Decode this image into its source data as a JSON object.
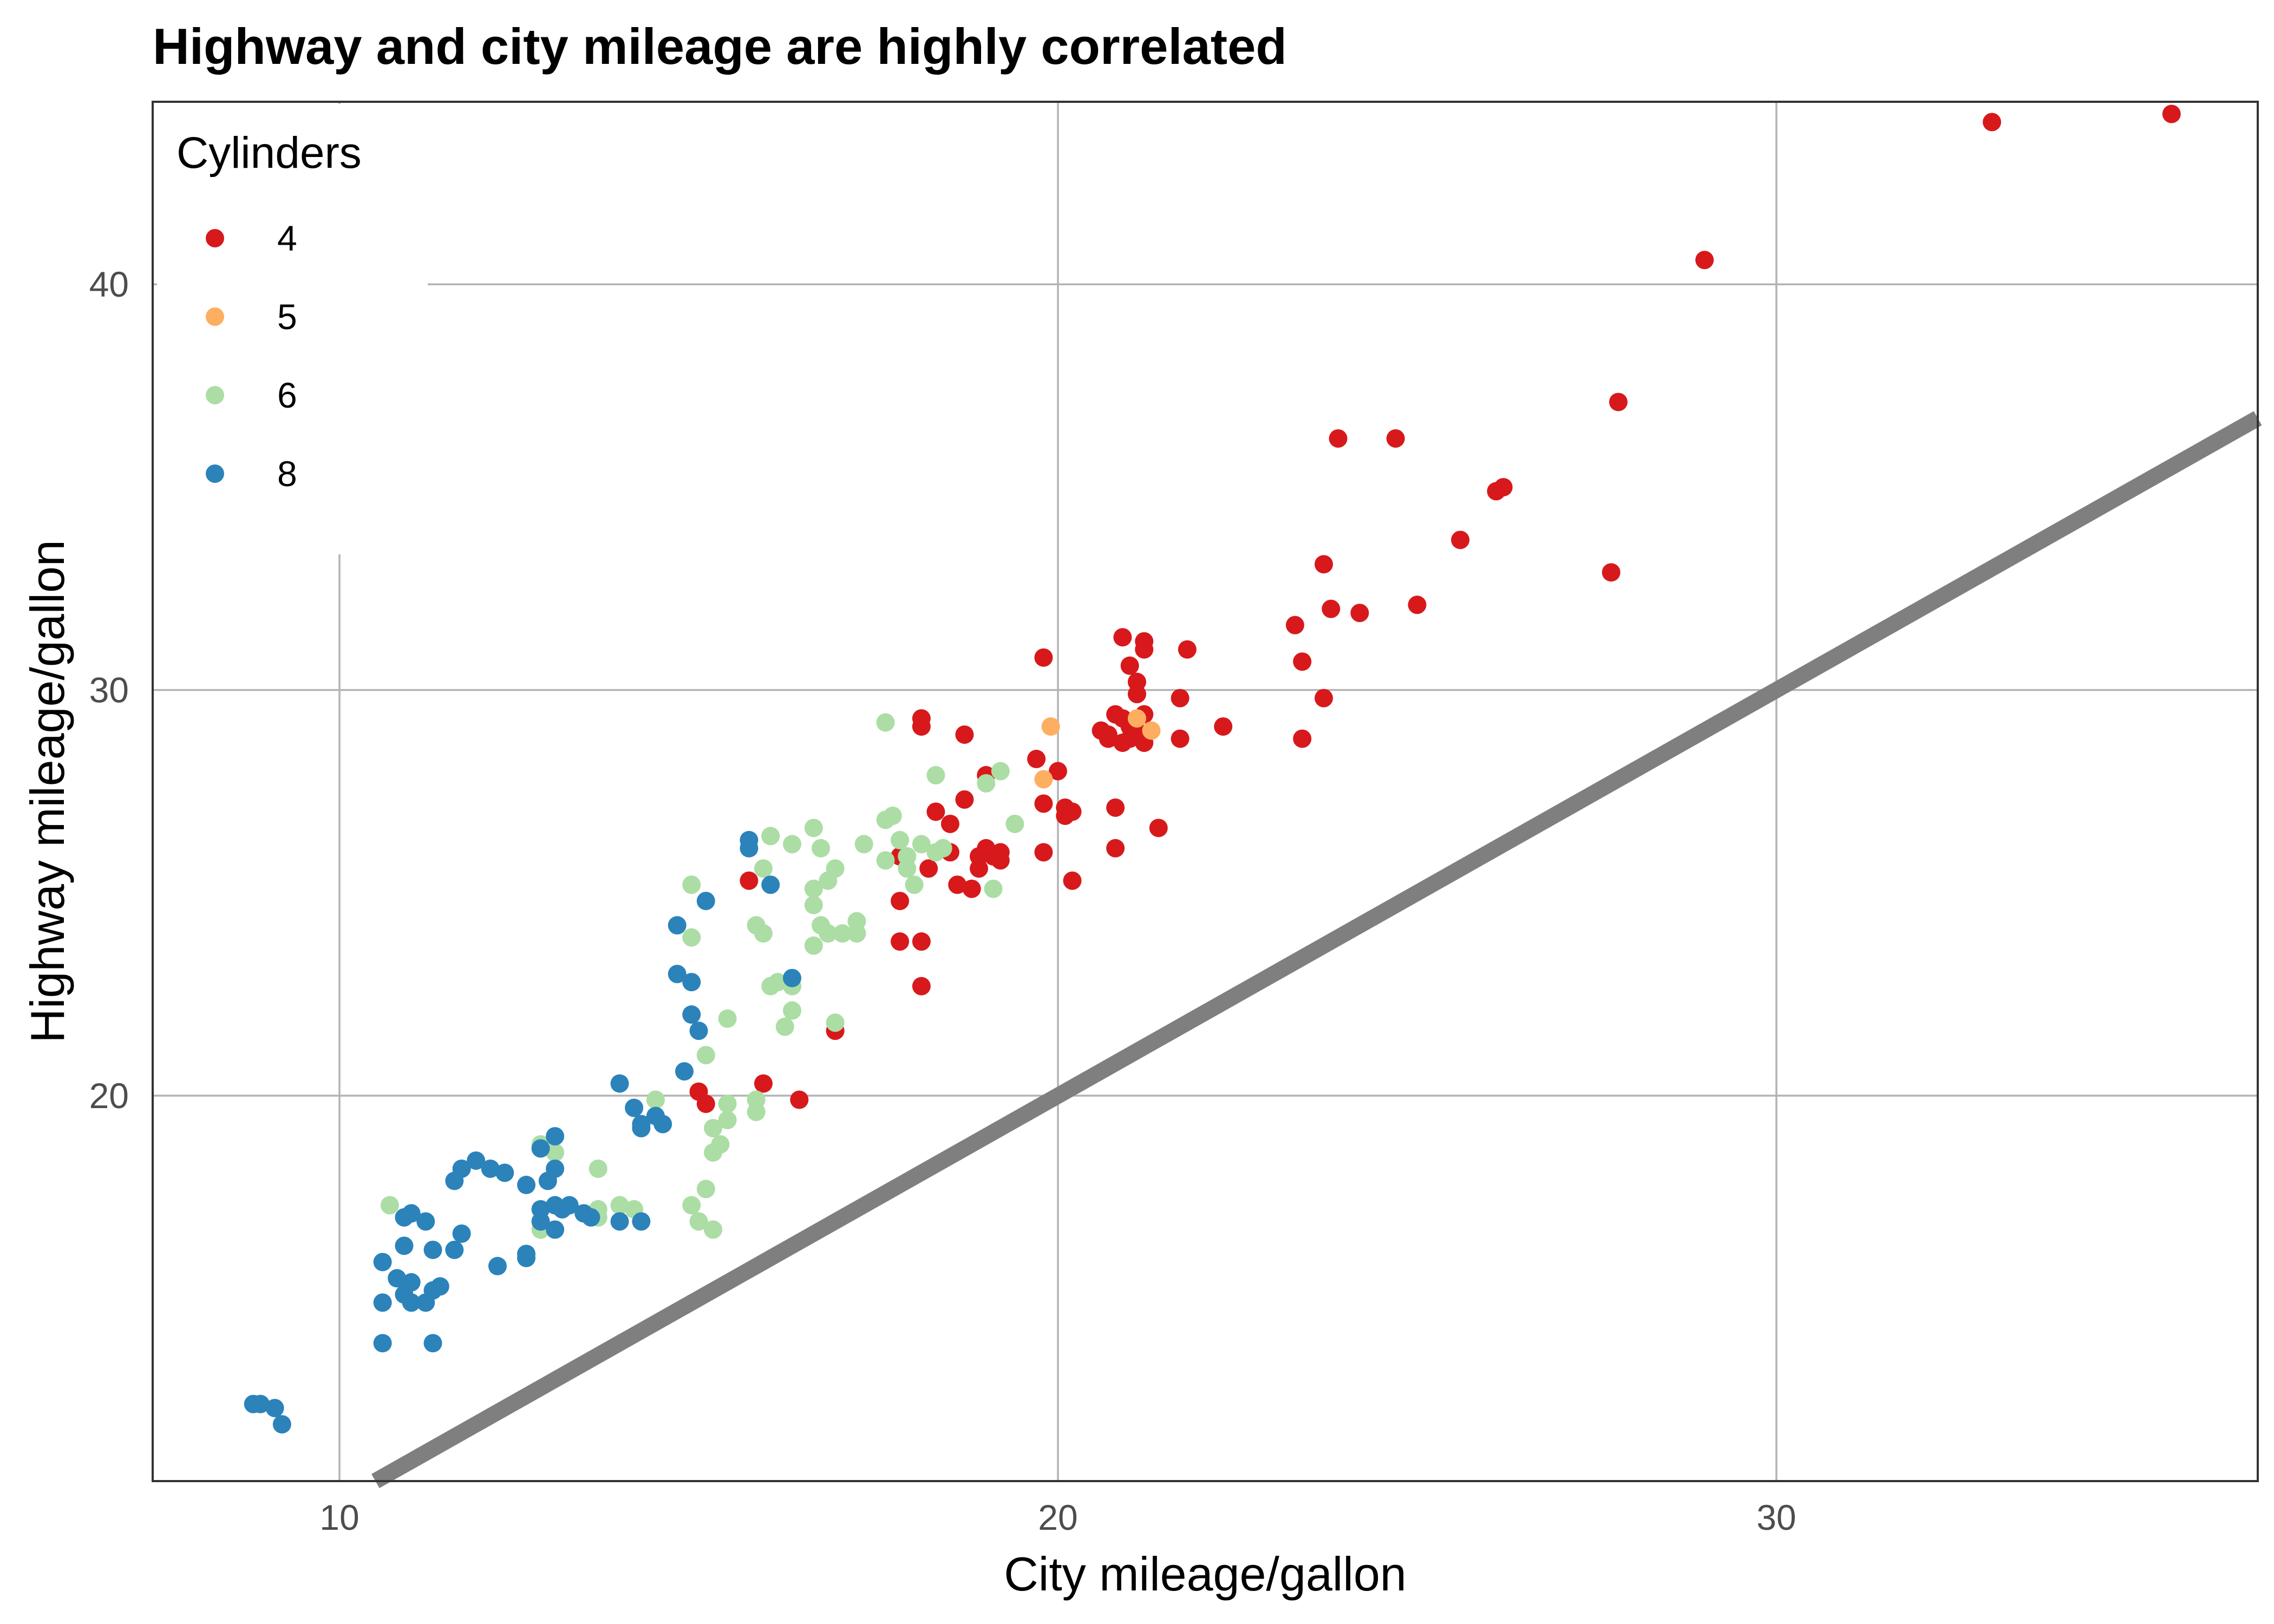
{
  "chart_data": {
    "type": "scatter",
    "title": "Highway and city mileage are highly correlated",
    "xlabel": "City mileage/gallon",
    "ylabel": "Highway mileage/gallon",
    "xlim": [
      7.4,
      36.7
    ],
    "ylim": [
      10.5,
      44.5
    ],
    "x_ticks": [
      10,
      20,
      30
    ],
    "y_ticks": [
      20,
      30,
      40
    ],
    "x_tick_labels": [
      "10",
      "20",
      "30"
    ],
    "y_tick_labels": [
      "20",
      "30",
      "40"
    ],
    "grid": true,
    "legend": {
      "title": "Cylinders",
      "position": "top-left",
      "entries": [
        {
          "label": "4",
          "color": "#d7191c"
        },
        {
          "label": "5",
          "color": "#fdae61"
        },
        {
          "label": "6",
          "color": "#abdda4"
        },
        {
          "label": "8",
          "color": "#2b83ba"
        }
      ]
    },
    "reference_line": {
      "slope": 1,
      "intercept": 0,
      "color": "#7f7f7f"
    },
    "series": [
      {
        "name": "4",
        "color": "#d7191c",
        "points": [
          [
            35.5,
            44.2
          ],
          [
            33.0,
            44.0
          ],
          [
            29.0,
            40.6
          ],
          [
            27.8,
            37.1
          ],
          [
            27.7,
            32.9
          ],
          [
            26.2,
            35.0
          ],
          [
            26.1,
            34.9
          ],
          [
            25.6,
            33.7
          ],
          [
            25.0,
            32.1
          ],
          [
            24.7,
            36.2
          ],
          [
            24.2,
            31.9
          ],
          [
            23.9,
            36.2
          ],
          [
            23.8,
            32.0
          ],
          [
            23.7,
            33.1
          ],
          [
            23.7,
            29.8
          ],
          [
            23.4,
            30.7
          ],
          [
            23.4,
            28.8
          ],
          [
            23.3,
            31.6
          ],
          [
            22.3,
            29.1
          ],
          [
            21.8,
            31.0
          ],
          [
            21.7,
            28.8
          ],
          [
            21.7,
            29.8
          ],
          [
            21.4,
            26.6
          ],
          [
            21.2,
            31.2
          ],
          [
            21.2,
            31.0
          ],
          [
            21.1,
            30.2
          ],
          [
            21.1,
            29.9
          ],
          [
            21.0,
            30.6
          ],
          [
            20.9,
            31.3
          ],
          [
            20.9,
            29.3
          ],
          [
            20.8,
            27.1
          ],
          [
            20.8,
            26.1
          ],
          [
            20.6,
            29.0
          ],
          [
            20.7,
            28.9
          ],
          [
            20.8,
            29.4
          ],
          [
            21.0,
            29.1
          ],
          [
            21.2,
            28.7
          ],
          [
            20.9,
            28.7
          ],
          [
            20.7,
            28.8
          ],
          [
            21.0,
            28.8
          ],
          [
            21.1,
            29.0
          ],
          [
            21.2,
            29.4
          ],
          [
            20.2,
            25.3
          ],
          [
            20.2,
            27.0
          ],
          [
            20.1,
            26.9
          ],
          [
            20.1,
            27.1
          ],
          [
            20.0,
            28.0
          ],
          [
            19.8,
            26.0
          ],
          [
            19.7,
            28.3
          ],
          [
            19.8,
            27.2
          ],
          [
            19.8,
            30.8
          ],
          [
            19.2,
            26.0
          ],
          [
            19.2,
            25.8
          ],
          [
            19.1,
            25.9
          ],
          [
            19.0,
            26.1
          ],
          [
            18.9,
            25.9
          ],
          [
            18.9,
            25.6
          ],
          [
            19.0,
            27.9
          ],
          [
            18.8,
            25.1
          ],
          [
            18.7,
            27.3
          ],
          [
            18.6,
            25.2
          ],
          [
            18.7,
            28.9
          ],
          [
            18.5,
            26.0
          ],
          [
            18.5,
            26.7
          ],
          [
            18.2,
            25.6
          ],
          [
            18.3,
            27.0
          ],
          [
            18.1,
            23.8
          ],
          [
            18.1,
            22.7
          ],
          [
            18.1,
            29.1
          ],
          [
            18.1,
            29.3
          ],
          [
            17.8,
            24.8
          ],
          [
            17.8,
            23.8
          ],
          [
            17.8,
            25.9
          ],
          [
            16.9,
            21.6
          ],
          [
            16.4,
            19.9
          ],
          [
            15.9,
            20.3
          ],
          [
            15.7,
            25.3
          ],
          [
            15.1,
            19.8
          ],
          [
            15.0,
            20.1
          ]
        ]
      },
      {
        "name": "5",
        "color": "#fdae61",
        "points": [
          [
            19.9,
            29.1
          ],
          [
            19.8,
            27.8
          ],
          [
            21.1,
            29.3
          ],
          [
            21.3,
            29.0
          ]
        ]
      },
      {
        "name": "6",
        "color": "#abdda4",
        "points": [
          [
            17.6,
            29.2
          ],
          [
            19.1,
            25.1
          ],
          [
            19.2,
            28.0
          ],
          [
            19.4,
            26.7
          ],
          [
            18.3,
            27.9
          ],
          [
            19.0,
            27.7
          ],
          [
            18.4,
            26.1
          ],
          [
            18.3,
            26.0
          ],
          [
            18.1,
            26.2
          ],
          [
            18.0,
            25.2
          ],
          [
            17.8,
            26.3
          ],
          [
            17.6,
            25.8
          ],
          [
            17.6,
            26.8
          ],
          [
            17.7,
            26.9
          ],
          [
            17.9,
            25.6
          ],
          [
            17.9,
            25.9
          ],
          [
            17.3,
            26.2
          ],
          [
            16.9,
            25.6
          ],
          [
            16.8,
            25.3
          ],
          [
            16.7,
            26.1
          ],
          [
            16.6,
            26.6
          ],
          [
            16.6,
            25.1
          ],
          [
            16.6,
            24.7
          ],
          [
            16.7,
            24.2
          ],
          [
            16.8,
            24.0
          ],
          [
            16.6,
            23.7
          ],
          [
            17.0,
            24.0
          ],
          [
            17.2,
            24.0
          ],
          [
            17.2,
            24.3
          ],
          [
            16.9,
            21.8
          ],
          [
            16.3,
            26.2
          ],
          [
            16.0,
            26.4
          ],
          [
            15.9,
            25.6
          ],
          [
            15.9,
            24.0
          ],
          [
            15.8,
            24.2
          ],
          [
            16.1,
            22.8
          ],
          [
            16.0,
            22.7
          ],
          [
            16.3,
            22.7
          ],
          [
            16.2,
            21.7
          ],
          [
            16.3,
            22.1
          ],
          [
            15.4,
            21.9
          ],
          [
            15.1,
            21.0
          ],
          [
            14.9,
            25.2
          ],
          [
            14.9,
            23.9
          ],
          [
            15.8,
            19.9
          ],
          [
            15.8,
            19.6
          ],
          [
            15.4,
            19.4
          ],
          [
            15.2,
            19.2
          ],
          [
            15.3,
            18.8
          ],
          [
            15.2,
            18.6
          ],
          [
            15.4,
            19.8
          ],
          [
            15.2,
            16.7
          ],
          [
            15.1,
            17.7
          ],
          [
            15.0,
            16.9
          ],
          [
            14.9,
            17.3
          ],
          [
            14.4,
            19.9
          ],
          [
            13.6,
            18.2
          ],
          [
            13.6,
            17.2
          ],
          [
            13.6,
            17.0
          ],
          [
            13.9,
            17.3
          ],
          [
            14.1,
            17.2
          ],
          [
            13.0,
            18.6
          ],
          [
            12.8,
            18.8
          ],
          [
            12.8,
            16.7
          ],
          [
            10.7,
            17.3
          ]
        ]
      },
      {
        "name": "8",
        "color": "#2b83ba",
        "points": [
          [
            15.7,
            26.3
          ],
          [
            15.7,
            26.1
          ],
          [
            16.0,
            25.2
          ],
          [
            16.3,
            22.9
          ],
          [
            15.1,
            24.8
          ],
          [
            14.7,
            24.2
          ],
          [
            14.7,
            23.0
          ],
          [
            14.9,
            22.8
          ],
          [
            14.9,
            22.0
          ],
          [
            15.0,
            21.6
          ],
          [
            14.8,
            20.6
          ],
          [
            13.9,
            20.3
          ],
          [
            14.1,
            19.7
          ],
          [
            14.2,
            19.3
          ],
          [
            14.4,
            19.5
          ],
          [
            14.5,
            19.3
          ],
          [
            14.2,
            19.2
          ],
          [
            13.0,
            19.0
          ],
          [
            12.8,
            18.7
          ],
          [
            13.0,
            18.2
          ],
          [
            12.9,
            17.9
          ],
          [
            12.6,
            17.8
          ],
          [
            13.0,
            17.3
          ],
          [
            13.2,
            17.3
          ],
          [
            13.4,
            17.1
          ],
          [
            13.5,
            17.0
          ],
          [
            13.1,
            17.2
          ],
          [
            12.8,
            17.2
          ],
          [
            12.8,
            16.9
          ],
          [
            13.0,
            16.7
          ],
          [
            13.9,
            16.9
          ],
          [
            14.2,
            16.9
          ],
          [
            12.3,
            18.1
          ],
          [
            12.1,
            18.2
          ],
          [
            11.9,
            18.4
          ],
          [
            11.7,
            18.2
          ],
          [
            11.6,
            17.9
          ],
          [
            11.7,
            16.6
          ],
          [
            11.6,
            16.2
          ],
          [
            12.2,
            15.8
          ],
          [
            12.6,
            16.0
          ],
          [
            12.6,
            16.1
          ],
          [
            11.3,
            16.2
          ],
          [
            10.9,
            16.3
          ],
          [
            10.9,
            17.0
          ],
          [
            11.0,
            17.1
          ],
          [
            11.2,
            16.9
          ],
          [
            10.6,
            15.9
          ],
          [
            10.8,
            15.5
          ],
          [
            11.0,
            15.4
          ],
          [
            10.9,
            15.1
          ],
          [
            11.0,
            14.9
          ],
          [
            11.2,
            14.9
          ],
          [
            11.3,
            15.2
          ],
          [
            11.4,
            15.3
          ],
          [
            10.6,
            14.9
          ],
          [
            11.3,
            13.9
          ],
          [
            10.6,
            13.9
          ],
          [
            8.8,
            12.4
          ],
          [
            8.9,
            12.4
          ],
          [
            9.1,
            12.3
          ],
          [
            9.2,
            11.9
          ]
        ]
      }
    ]
  }
}
